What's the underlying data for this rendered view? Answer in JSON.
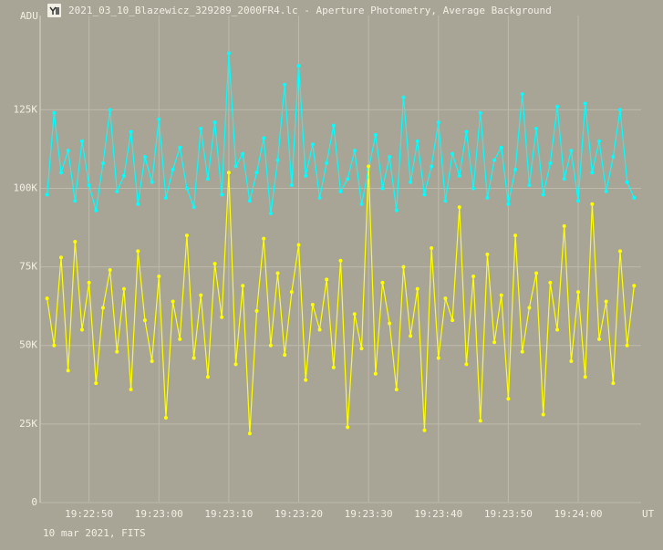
{
  "window_title": "2021_03_10_Blazewicz_329289_2000FR4.lc - Aperture Photometry, Average Background",
  "footer": "10 mar 2021, FITS",
  "chart_data": {
    "type": "line",
    "y_label": "ADU",
    "x_label": "UT",
    "x": [
      "19:22:44",
      "19:22:45",
      "19:22:46",
      "19:22:47",
      "19:22:48",
      "19:22:49",
      "19:22:50",
      "19:22:51",
      "19:22:52",
      "19:22:53",
      "19:22:54",
      "19:22:55",
      "19:22:56",
      "19:22:57",
      "19:22:58",
      "19:22:59",
      "19:23:00",
      "19:23:01",
      "19:23:02",
      "19:23:03",
      "19:23:04",
      "19:23:05",
      "19:23:06",
      "19:23:07",
      "19:23:08",
      "19:23:09",
      "19:23:10",
      "19:23:11",
      "19:23:12",
      "19:23:13",
      "19:23:14",
      "19:23:15",
      "19:23:16",
      "19:23:17",
      "19:23:18",
      "19:23:19",
      "19:23:20",
      "19:23:21",
      "19:23:22",
      "19:23:23",
      "19:23:24",
      "19:23:25",
      "19:23:26",
      "19:23:27",
      "19:23:28",
      "19:23:29",
      "19:23:30",
      "19:23:31",
      "19:23:32",
      "19:23:33",
      "19:23:34",
      "19:23:35",
      "19:23:36",
      "19:23:37",
      "19:23:38",
      "19:23:39",
      "19:23:40",
      "19:23:41",
      "19:23:42",
      "19:23:43",
      "19:23:44",
      "19:23:45",
      "19:23:46",
      "19:23:47",
      "19:23:48",
      "19:23:49",
      "19:23:50",
      "19:23:51",
      "19:23:52",
      "19:23:53",
      "19:23:54",
      "19:23:55",
      "19:23:56",
      "19:23:57",
      "19:23:58",
      "19:23:59",
      "19:24:00",
      "19:24:01",
      "19:24:02",
      "19:24:03",
      "19:24:04",
      "19:24:05",
      "19:24:06",
      "19:24:07",
      "19:24:08"
    ],
    "series": [
      {
        "color": "#00ffff",
        "values": [
          98000,
          124000,
          105000,
          112000,
          96000,
          115000,
          101000,
          93000,
          108000,
          125000,
          99000,
          104000,
          118000,
          95000,
          110000,
          102000,
          122000,
          97000,
          106000,
          113000,
          100000,
          94000,
          119000,
          103000,
          121000,
          98000,
          143000,
          107000,
          111000,
          96000,
          105000,
          116000,
          92000,
          109000,
          133000,
          101000,
          139000,
          104000,
          114000,
          97000,
          108000,
          120000,
          99000,
          103000,
          112000,
          95000,
          106000,
          117000,
          100000,
          110000,
          93000,
          129000,
          102000,
          115000,
          98000,
          107000,
          121000,
          96000,
          111000,
          104000,
          118000,
          100000,
          124000,
          97000,
          109000,
          113000,
          95000,
          106000,
          130000,
          101000,
          119000,
          98000,
          108000,
          126000,
          103000,
          112000,
          96000,
          127000,
          105000,
          115000,
          99000,
          110000,
          125000,
          102000,
          97000
        ]
      },
      {
        "color": "#ffff00",
        "values": [
          65000,
          50000,
          78000,
          42000,
          83000,
          55000,
          70000,
          38000,
          62000,
          74000,
          48000,
          68000,
          36000,
          80000,
          58000,
          45000,
          72000,
          27000,
          64000,
          52000,
          85000,
          46000,
          66000,
          40000,
          76000,
          59000,
          105000,
          44000,
          69000,
          22000,
          61000,
          84000,
          50000,
          73000,
          47000,
          67000,
          82000,
          39000,
          63000,
          55000,
          71000,
          43000,
          77000,
          24000,
          60000,
          49000,
          107000,
          41000,
          70000,
          57000,
          36000,
          75000,
          53000,
          68000,
          23000,
          81000,
          46000,
          65000,
          58000,
          94000,
          44000,
          72000,
          26000,
          79000,
          51000,
          66000,
          33000,
          85000,
          48000,
          62000,
          73000,
          28000,
          70000,
          55000,
          88000,
          45000,
          67000,
          40000,
          95000,
          52000,
          64000,
          38000,
          80000,
          50000,
          69000
        ]
      }
    ],
    "xlim": [
      "19:22:43",
      "19:24:09"
    ],
    "xticks": [
      "19:22:50",
      "19:23:00",
      "19:23:10",
      "19:23:20",
      "19:23:30",
      "19:23:40",
      "19:23:50",
      "19:24:00"
    ],
    "ylim": [
      0,
      155000
    ],
    "yticks": [
      0,
      {
        "value": 25000,
        "label": "25K"
      },
      {
        "value": 50000,
        "label": "50K"
      },
      {
        "value": 75000,
        "label": "75K"
      },
      {
        "value": 100000,
        "label": "100K"
      },
      {
        "value": 125000,
        "label": "125K"
      }
    ],
    "grid": true
  }
}
